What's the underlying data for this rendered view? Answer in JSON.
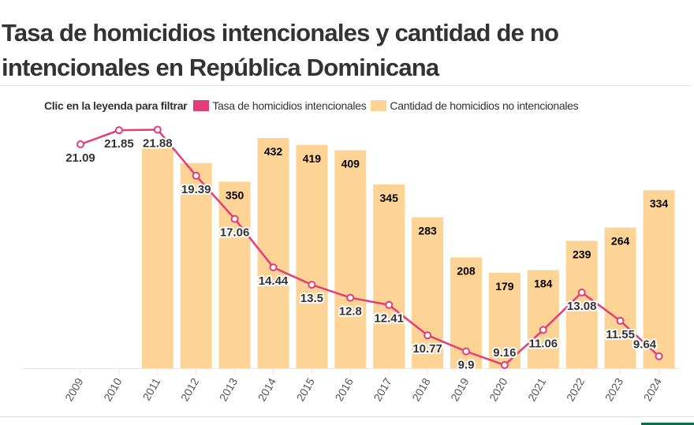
{
  "title": "Tasa de homicidios intencionales y cantidad de no intencionales en República Dominicana",
  "legend": {
    "hint": "Clic en la leyenda para filtrar",
    "items": [
      {
        "label": "Tasa de homicidios intencionales",
        "color": "#e23d78"
      },
      {
        "label": "Cantidad de homicidios no intencionales",
        "color": "#fed396"
      }
    ]
  },
  "chart_data": {
    "type": "bar+line",
    "categories": [
      "2009",
      "2010",
      "2011",
      "2012",
      "2013",
      "2014",
      "2015",
      "2016",
      "2017",
      "2018",
      "2019",
      "2020",
      "2021",
      "2022",
      "2023",
      "2024"
    ],
    "series": [
      {
        "name": "Tasa de homicidios intencionales",
        "type": "line",
        "color": "#e23d78",
        "values": [
          21.09,
          21.85,
          21.88,
          19.39,
          17.06,
          14.44,
          13.5,
          12.8,
          12.41,
          10.77,
          9.9,
          9.16,
          11.06,
          13.08,
          11.55,
          9.64
        ],
        "labels_shown": true
      },
      {
        "name": "Cantidad de homicidios no intencionales",
        "type": "bar",
        "color": "#fed396",
        "values": [
          null,
          null,
          414,
          385,
          350,
          432,
          419,
          409,
          345,
          283,
          208,
          179,
          184,
          239,
          264,
          334
        ],
        "labels_shown": [
          false,
          false,
          false,
          false,
          true,
          true,
          true,
          true,
          true,
          true,
          true,
          true,
          true,
          true,
          true,
          true
        ]
      }
    ],
    "grid": false,
    "legend_position": "top"
  }
}
